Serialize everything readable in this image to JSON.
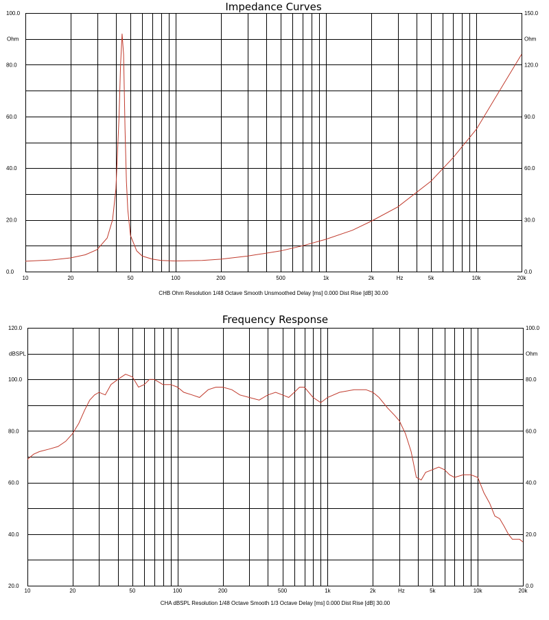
{
  "chart_data": [
    {
      "type": "line",
      "title": "Impedance Curves",
      "caption": "CHB Ohm Resolution 1/48 Octave Smooth Unsmoothed Delay [ms] 0.000 Dist Rise [dB] 30.00",
      "x_scale": "log",
      "xlim": [
        10,
        20000
      ],
      "x_ticks": [
        10,
        20,
        50,
        100,
        200,
        500,
        1000,
        2000,
        5000,
        10000,
        20000
      ],
      "x_tick_labels": [
        "10",
        "20",
        "50",
        "100",
        "200",
        "500",
        "1k",
        "2k",
        "5k",
        "10k",
        "20k"
      ],
      "x_unit_label": "Hz",
      "y_left": {
        "unit": "Ohm",
        "lim": [
          0,
          100
        ],
        "ticks": [
          0,
          20,
          40,
          60,
          80,
          100
        ],
        "tick_labels": [
          "0.0",
          "20.0",
          "40.0",
          "60.0",
          "80.0",
          "100.0"
        ]
      },
      "y_right": {
        "unit": "Ohm",
        "lim": [
          0,
          150
        ],
        "ticks": [
          0,
          30,
          60,
          90,
          120,
          150
        ],
        "tick_labels": [
          "0.0",
          "30.0",
          "60.0",
          "90.0",
          "120.0",
          "150.0"
        ]
      },
      "grid": true,
      "series": [
        {
          "color": "#c0392b",
          "x": [
            10,
            15,
            20,
            25,
            30,
            35,
            38,
            40,
            42,
            43,
            44,
            45,
            46,
            47,
            48,
            50,
            55,
            60,
            70,
            80,
            100,
            150,
            200,
            300,
            500,
            700,
            1000,
            1500,
            2000,
            3000,
            5000,
            7000,
            10000,
            15000,
            20000
          ],
          "y": [
            4,
            4.5,
            5.3,
            6.5,
            8.5,
            13,
            20,
            32,
            60,
            80,
            92,
            84,
            55,
            35,
            24,
            14,
            8,
            6,
            4.8,
            4.3,
            4.1,
            4.3,
            4.8,
            6,
            8,
            10,
            12.5,
            16,
            19.5,
            25,
            35,
            44,
            55,
            72,
            84
          ]
        }
      ]
    },
    {
      "type": "line",
      "title": "Frequency Response",
      "caption": "CHA dBSPL Resolution 1/48 Octave Smooth 1/3 Octave Delay [ms] 0.000 Dist Rise [dB] 30.00",
      "x_scale": "log",
      "xlim": [
        10,
        20000
      ],
      "x_ticks": [
        10,
        20,
        50,
        100,
        200,
        500,
        1000,
        2000,
        5000,
        10000,
        20000
      ],
      "x_tick_labels": [
        "10",
        "20",
        "50",
        "100",
        "200",
        "500",
        "1k",
        "2k",
        "5k",
        "10k",
        "20k"
      ],
      "x_unit_label": "Hz",
      "y_left": {
        "unit": "dBSPL",
        "lim": [
          20,
          120
        ],
        "ticks": [
          20,
          40,
          60,
          80,
          100,
          120
        ],
        "tick_labels": [
          "20.0",
          "40.0",
          "60.0",
          "80.0",
          "100.0",
          "120.0"
        ]
      },
      "y_right": {
        "unit": "Ohm",
        "lim": [
          0,
          100
        ],
        "ticks": [
          0,
          20,
          40,
          60,
          80,
          100
        ],
        "tick_labels": [
          "0.0",
          "20.0",
          "40.0",
          "60.0",
          "80.0",
          "100.0"
        ]
      },
      "grid": true,
      "series": [
        {
          "color": "#c0392b",
          "x": [
            10,
            11,
            12,
            14,
            16,
            18,
            20,
            22,
            24,
            26,
            28,
            30,
            33,
            36,
            40,
            45,
            50,
            55,
            60,
            65,
            70,
            80,
            90,
            100,
            110,
            125,
            140,
            160,
            180,
            200,
            230,
            260,
            300,
            350,
            400,
            450,
            500,
            550,
            600,
            650,
            700,
            800,
            900,
            1000,
            1200,
            1500,
            1800,
            2000,
            2200,
            2500,
            2800,
            3000,
            3300,
            3600,
            3900,
            4200,
            4500,
            5000,
            5500,
            6000,
            6500,
            7000,
            8000,
            9000,
            10000,
            11000,
            12000,
            13000,
            14000,
            15000,
            16000,
            17000,
            18000,
            19000,
            20000
          ],
          "y": [
            69,
            71,
            72,
            73,
            74,
            76,
            79,
            83,
            88,
            92,
            94,
            95,
            94,
            98,
            100,
            102,
            101,
            97,
            98,
            100,
            100,
            98,
            98,
            97,
            95,
            94,
            93,
            96,
            97,
            97,
            96,
            94,
            93,
            92,
            94,
            95,
            94,
            93,
            95,
            97,
            97,
            93,
            91,
            93,
            95,
            96,
            96,
            95,
            93,
            89,
            86,
            84,
            79,
            72,
            62,
            61,
            64,
            65,
            66,
            65,
            63,
            62,
            63,
            63,
            62,
            56,
            52,
            47,
            46,
            43,
            40,
            38,
            38,
            38,
            37
          ]
        }
      ]
    }
  ]
}
